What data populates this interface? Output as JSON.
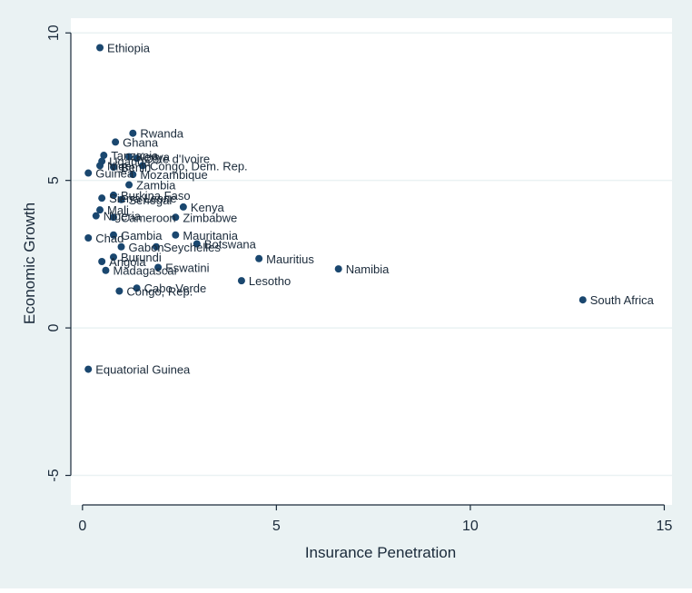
{
  "chart_data": {
    "type": "scatter",
    "title": "",
    "xlabel": "Insurance Penetration",
    "ylabel": "Economic Growth",
    "xlim": [
      -0.3,
      15.2
    ],
    "ylim": [
      -6.0,
      10.5
    ],
    "xticks": [
      "0",
      "5",
      "10",
      "15"
    ],
    "yticks": [
      "-5",
      "0",
      "5",
      "10"
    ],
    "grid": "horizontal",
    "colors": {
      "marker": "#1a476f",
      "plot_bg": "#ffffff",
      "outer_bg": "#eaf2f3",
      "grid": "#eaf2f3",
      "text": "#1a2a3a"
    },
    "points": [
      {
        "label": "Ethiopia",
        "x": 0.45,
        "y": 9.5
      },
      {
        "label": "Rwanda",
        "x": 1.3,
        "y": 6.6
      },
      {
        "label": "Ghana",
        "x": 0.85,
        "y": 6.3
      },
      {
        "label": "Tanzania",
        "x": 0.55,
        "y": 5.85
      },
      {
        "label": "Uganda",
        "x": 0.5,
        "y": 5.65
      },
      {
        "label": "Niger",
        "x": 0.45,
        "y": 5.5
      },
      {
        "label": "Benin",
        "x": 0.8,
        "y": 5.45
      },
      {
        "label": "Kenya",
        "x": 1.2,
        "y": 5.8
      },
      {
        "label": "Côte d'Ivoire",
        "x": 1.4,
        "y": 5.75
      },
      {
        "label": "Congo, Dem. Rep.",
        "x": 1.55,
        "y": 5.5
      },
      {
        "label": "Mozambique",
        "x": 1.3,
        "y": 5.2
      },
      {
        "label": "Guinea",
        "x": 0.15,
        "y": 5.25
      },
      {
        "label": "Zambia",
        "x": 1.2,
        "y": 4.85
      },
      {
        "label": "Burkina Faso",
        "x": 0.8,
        "y": 4.5
      },
      {
        "label": "Senegal",
        "x": 1.0,
        "y": 4.35
      },
      {
        "label": "Sierra Leone",
        "x": 0.5,
        "y": 4.4
      },
      {
        "label": "Kenya",
        "x": 2.6,
        "y": 4.1
      },
      {
        "label": "Mali",
        "x": 0.45,
        "y": 4.0
      },
      {
        "label": "Nigeria",
        "x": 0.35,
        "y": 3.8
      },
      {
        "label": "Cameroon",
        "x": 0.8,
        "y": 3.75
      },
      {
        "label": "Zimbabwe",
        "x": 2.4,
        "y": 3.75
      },
      {
        "label": "Gambia",
        "x": 0.8,
        "y": 3.15
      },
      {
        "label": "Chad",
        "x": 0.15,
        "y": 3.05
      },
      {
        "label": "Mauritania",
        "x": 2.4,
        "y": 3.15
      },
      {
        "label": "Gabon",
        "x": 1.0,
        "y": 2.75
      },
      {
        "label": "Seychelles",
        "x": 1.9,
        "y": 2.75
      },
      {
        "label": "Botswana",
        "x": 2.95,
        "y": 2.85
      },
      {
        "label": "Mauritius",
        "x": 4.55,
        "y": 2.35
      },
      {
        "label": "Namibia",
        "x": 6.6,
        "y": 2.0
      },
      {
        "label": "Burundi",
        "x": 0.8,
        "y": 2.4
      },
      {
        "label": "Angola",
        "x": 0.5,
        "y": 2.25
      },
      {
        "label": "Eswatini",
        "x": 1.95,
        "y": 2.05
      },
      {
        "label": "Madagascar",
        "x": 0.6,
        "y": 1.95
      },
      {
        "label": "Lesotho",
        "x": 4.1,
        "y": 1.6
      },
      {
        "label": "Cabo Verde",
        "x": 1.4,
        "y": 1.35
      },
      {
        "label": "Congo, Rep.",
        "x": 0.95,
        "y": 1.25
      },
      {
        "label": "South Africa",
        "x": 12.9,
        "y": 0.95
      },
      {
        "label": "Equatorial Guinea",
        "x": 0.15,
        "y": -1.4
      }
    ]
  }
}
